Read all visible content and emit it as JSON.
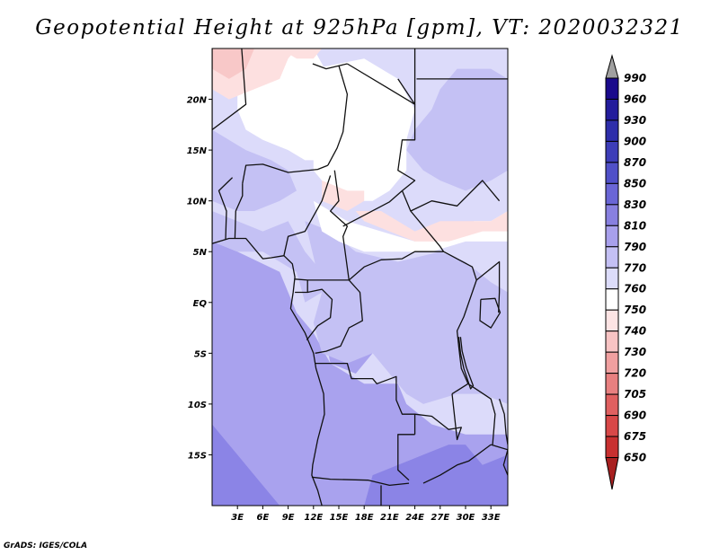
{
  "title": "Geopotential Height at 925hPa [gpm], VT: 2020032321",
  "credit": "GrADS: IGES/COLA",
  "map": {
    "lon_range": [
      0,
      35
    ],
    "lat_range": [
      -20,
      25
    ],
    "x_ticks": [
      {
        "value": 3,
        "label": "3E"
      },
      {
        "value": 6,
        "label": "6E"
      },
      {
        "value": 9,
        "label": "9E"
      },
      {
        "value": 12,
        "label": "12E"
      },
      {
        "value": 15,
        "label": "15E"
      },
      {
        "value": 18,
        "label": "18E"
      },
      {
        "value": 21,
        "label": "21E"
      },
      {
        "value": 24,
        "label": "24E"
      },
      {
        "value": 27,
        "label": "27E"
      },
      {
        "value": 30,
        "label": "30E"
      },
      {
        "value": 33,
        "label": "33E"
      }
    ],
    "y_ticks": [
      {
        "value": 20,
        "label": "20N"
      },
      {
        "value": 15,
        "label": "15N"
      },
      {
        "value": 10,
        "label": "10N"
      },
      {
        "value": 5,
        "label": "5N"
      },
      {
        "value": 0,
        "label": "EQ"
      },
      {
        "value": -5,
        "label": "5S"
      },
      {
        "value": -10,
        "label": "10S"
      },
      {
        "value": -15,
        "label": "15S"
      }
    ]
  },
  "colorbar": {
    "levels": [
      {
        "label": "990",
        "color": "#1a0a8c"
      },
      {
        "label": "960",
        "color": "#231c9c"
      },
      {
        "label": "930",
        "color": "#2e2eaa"
      },
      {
        "label": "900",
        "color": "#3d3db8"
      },
      {
        "label": "870",
        "color": "#5050c8"
      },
      {
        "label": "850",
        "color": "#6a66d6"
      },
      {
        "label": "830",
        "color": "#8880e0"
      },
      {
        "label": "810",
        "color": "#a8a0ec"
      },
      {
        "label": "790",
        "color": "#c4c0f4"
      },
      {
        "label": "770",
        "color": "#dcdcfa"
      },
      {
        "label": "760",
        "color": "#ffffff"
      },
      {
        "label": "750",
        "color": "#fde4e4"
      },
      {
        "label": "740",
        "color": "#f8c4c4"
      },
      {
        "label": "730",
        "color": "#f0a0a0"
      },
      {
        "label": "720",
        "color": "#e88080"
      },
      {
        "label": "705",
        "color": "#e06060"
      },
      {
        "label": "690",
        "color": "#d84848"
      },
      {
        "label": "675",
        "color": "#c83030"
      },
      {
        "label": "650",
        "color": "#a82020"
      }
    ],
    "top_arrow_color": "#a0a0a0"
  },
  "field_colors": {
    "deep": "#8b84e6",
    "medium": "#a9a2ee",
    "light": "#c4c1f4",
    "pale": "#dcdbfa",
    "white": "#ffffff",
    "pink": "#fde0e0",
    "rose": "#f8c8c8"
  }
}
